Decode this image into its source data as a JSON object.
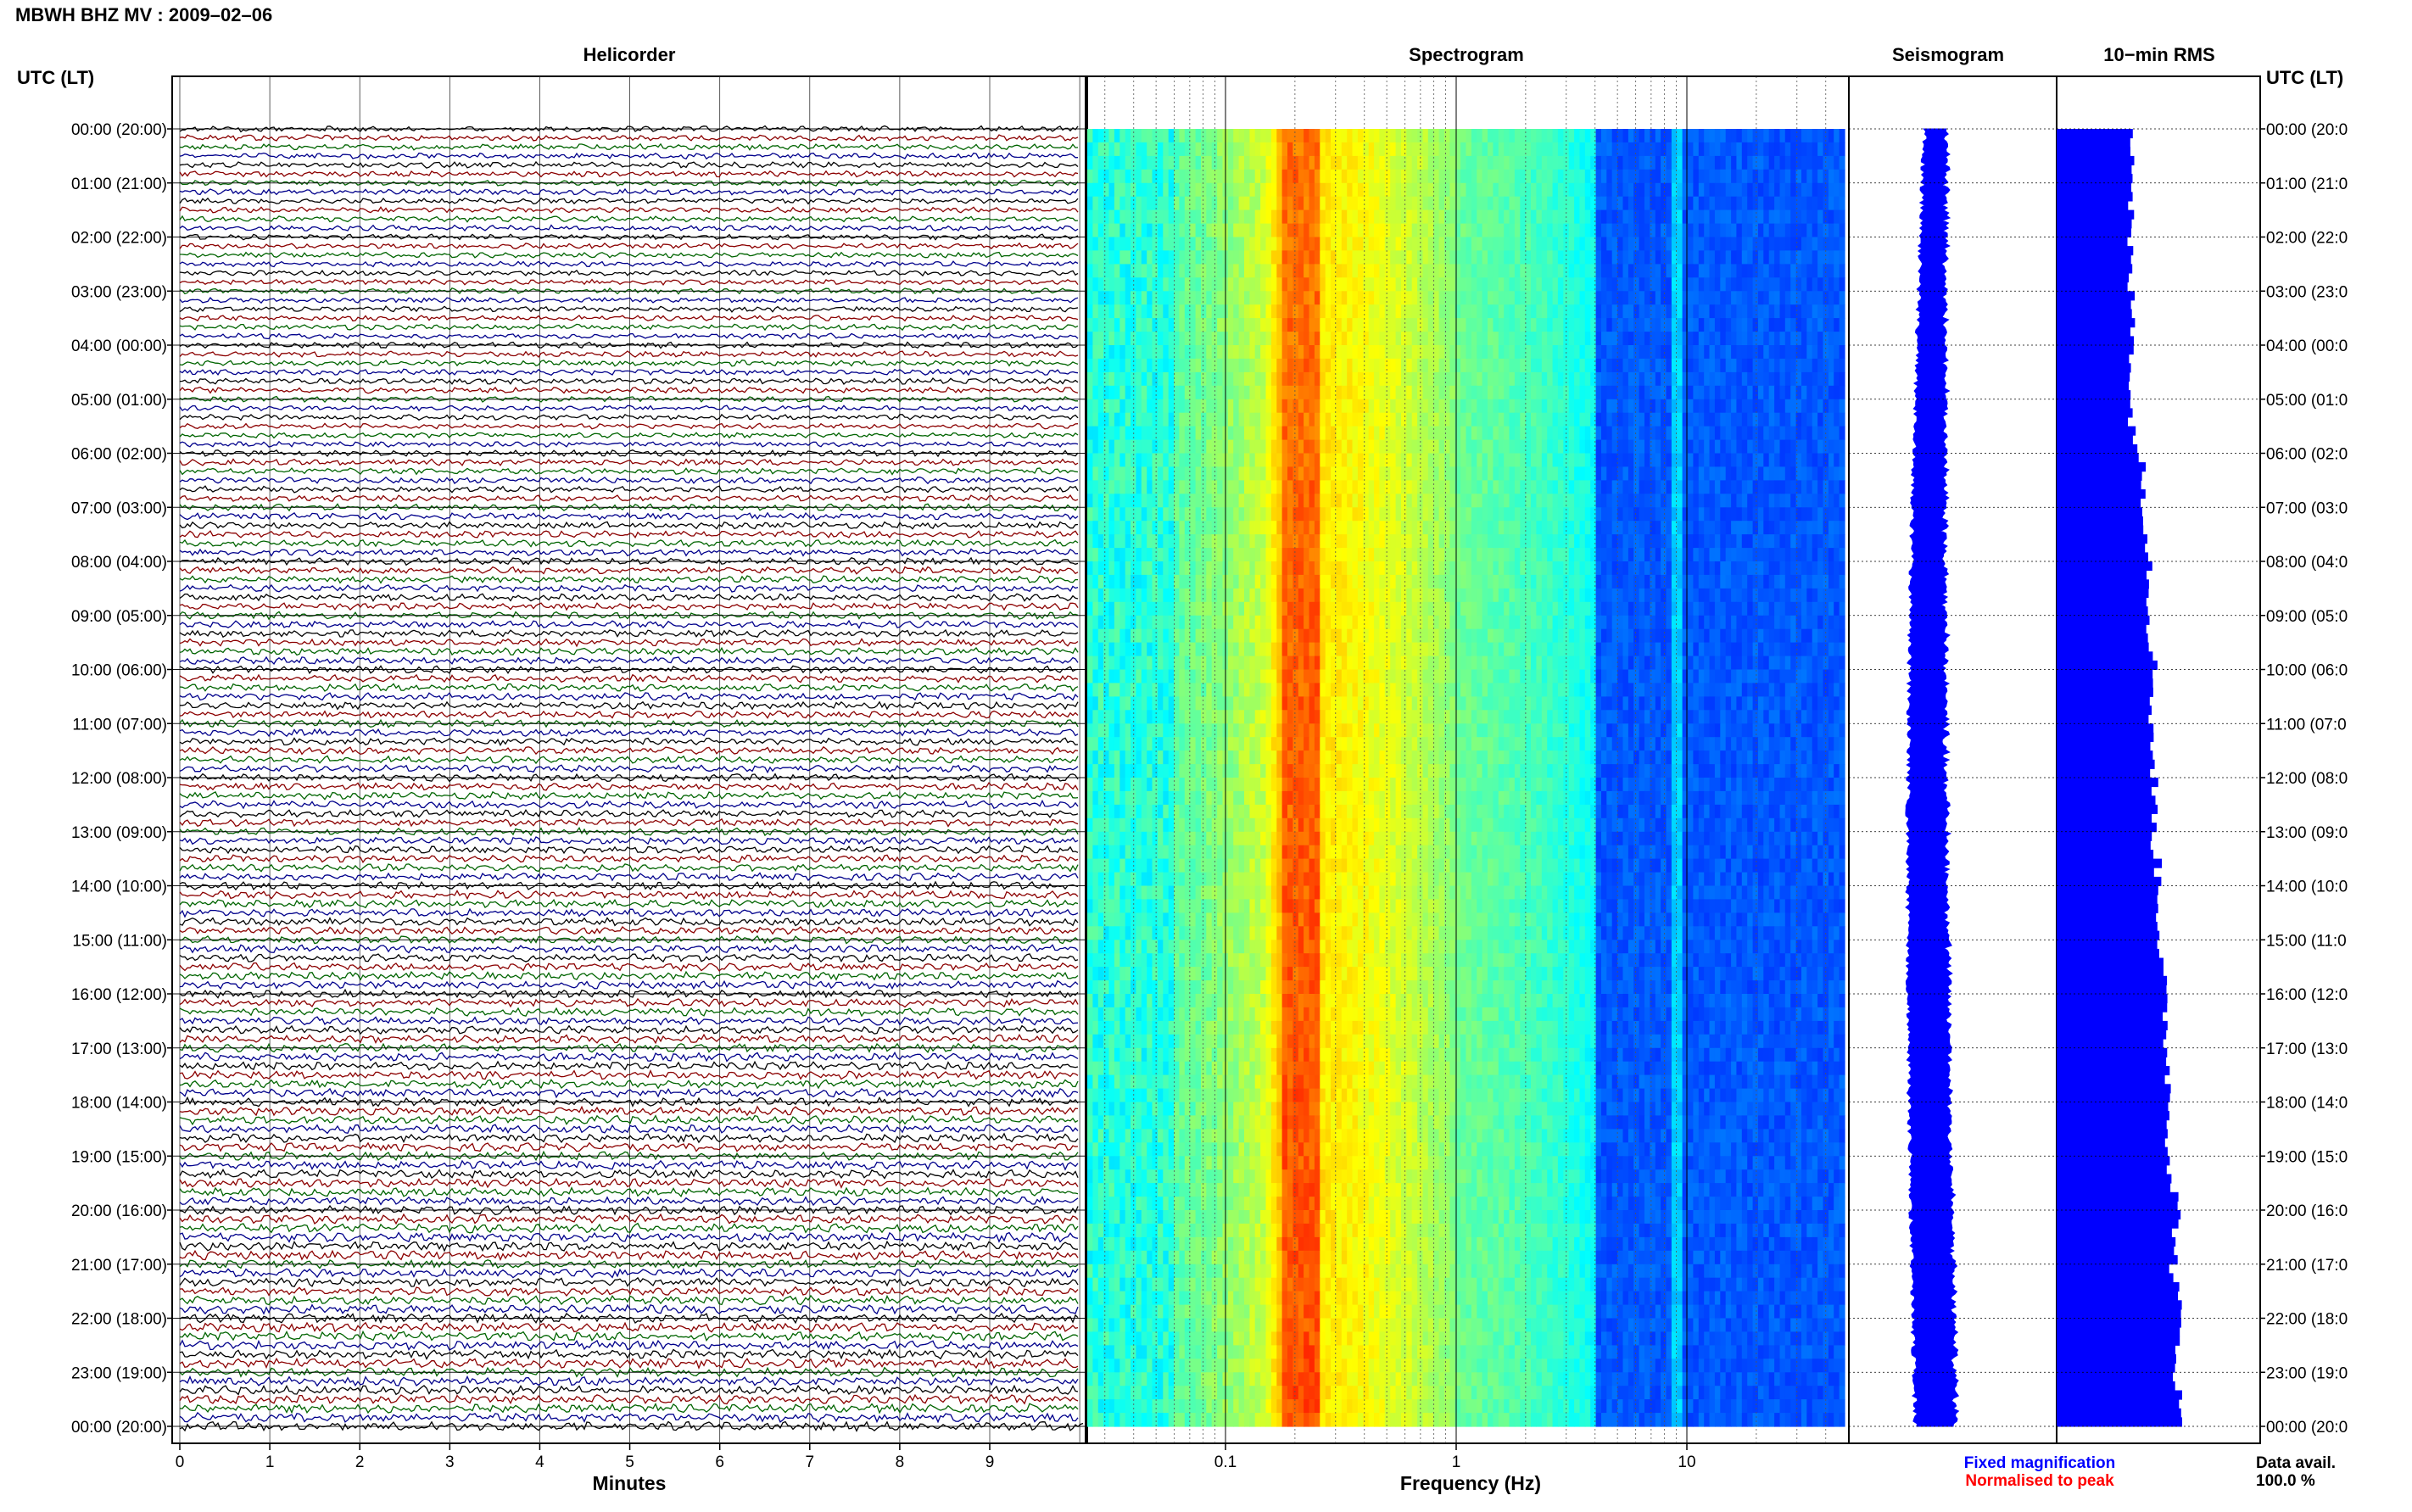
{
  "header": {
    "title": "MBWH BHZ MV : 2009–02–06"
  },
  "panels": {
    "helicorder": "Helicorder",
    "spectrogram": "Spectrogram",
    "seismogram": "Seismogram",
    "rms": "10−min RMS"
  },
  "axis_header": {
    "left": "UTC (LT)",
    "right": "UTC (LT)"
  },
  "time_labels": [
    "00:00 (20:00)",
    "01:00 (21:00)",
    "02:00 (22:00)",
    "03:00 (23:00)",
    "04:00 (00:00)",
    "05:00 (01:00)",
    "06:00 (02:00)",
    "07:00 (03:00)",
    "08:00 (04:00)",
    "09:00 (05:00)",
    "10:00 (06:00)",
    "11:00 (07:00)",
    "12:00 (08:00)",
    "13:00 (09:00)",
    "14:00 (10:00)",
    "15:00 (11:00)",
    "16:00 (12:00)",
    "17:00 (13:00)",
    "18:00 (14:00)",
    "19:00 (15:00)",
    "20:00 (16:00)",
    "21:00 (17:00)",
    "22:00 (18:00)",
    "23:00 (19:00)",
    "00:00 (20:00)"
  ],
  "time_labels_right": [
    "00:00 (20:0",
    "01:00 (21:0",
    "02:00 (22:0",
    "03:00 (23:0",
    "04:00 (00:0",
    "05:00 (01:0",
    "06:00 (02:0",
    "07:00 (03:0",
    "08:00 (04:0",
    "09:00 (05:0",
    "10:00 (06:0",
    "11:00 (07:0",
    "12:00 (08:0",
    "13:00 (09:0",
    "14:00 (10:0",
    "15:00 (11:0",
    "16:00 (12:0",
    "17:00 (13:0",
    "18:00 (14:0",
    "19:00 (15:0",
    "20:00 (16:0",
    "21:00 (17:0",
    "22:00 (18:0",
    "23:00 (19:0",
    "00:00 (20:0"
  ],
  "legend": {
    "fixed": {
      "text": "Fixed magnification",
      "color": "#0000ff"
    },
    "normalised": {
      "text": "Normalised to peak",
      "color": "#ff0000"
    }
  },
  "data_avail": {
    "label": "Data avail.",
    "value": "100.0 %"
  },
  "colors": {
    "trace_cycle": [
      "#000000",
      "#8b0000",
      "#006400",
      "#00008b"
    ],
    "seismogram": "#0000ff",
    "rms_bars": "#0000ff",
    "spectrogram_colormap": "jet"
  },
  "chart_data": [
    {
      "type": "line",
      "title": "Helicorder",
      "xlabel": "Minutes",
      "x_ticks": [
        "0",
        "1",
        "2",
        "3",
        "4",
        "5",
        "6",
        "7",
        "8",
        "9"
      ],
      "xlim": [
        0,
        10
      ],
      "ylabel": "UTC (LT)",
      "lines_per_hour": 6,
      "total_lines": 144,
      "series_color_cycle": [
        "black",
        "dark red",
        "dark green",
        "dark blue"
      ],
      "grid": true
    },
    {
      "type": "heatmap",
      "title": "Spectrogram",
      "xlabel": "Frequency (Hz)",
      "x_scale": "log",
      "x_ticks": [
        "0.1",
        "1",
        "10"
      ],
      "xlim": [
        0.02,
        50
      ],
      "ylabel": "UTC (LT)",
      "colormap": "jet",
      "peak_band_hz": [
        0.18,
        0.25
      ],
      "spectral_line_hz": 9.0,
      "rolloff_hz": 4.0
    },
    {
      "type": "line",
      "title": "Seismogram",
      "envelope_center_fraction": 0.5,
      "envelope_halfwidth_fraction": [
        0.07,
        0.12
      ]
    },
    {
      "type": "bar",
      "title": "10−min RMS",
      "orientation": "horizontal",
      "bins": 144,
      "hourly_relative_amplitude": [
        0.4,
        0.39,
        0.37,
        0.38,
        0.4,
        0.37,
        0.43,
        0.46,
        0.48,
        0.48,
        0.5,
        0.49,
        0.5,
        0.5,
        0.53,
        0.53,
        0.55,
        0.57,
        0.58,
        0.58,
        0.62,
        0.6,
        0.63,
        0.62,
        0.63
      ],
      "relative_scale": [
        0,
        1
      ]
    }
  ]
}
